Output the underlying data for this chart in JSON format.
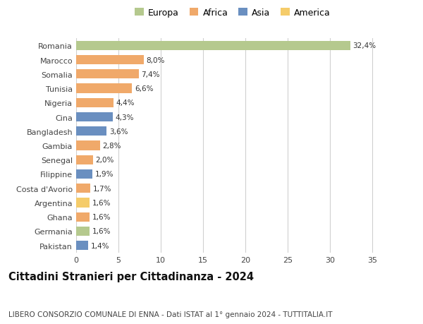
{
  "countries": [
    "Romania",
    "Marocco",
    "Somalia",
    "Tunisia",
    "Nigeria",
    "Cina",
    "Bangladesh",
    "Gambia",
    "Senegal",
    "Filippine",
    "Costa d'Avorio",
    "Argentina",
    "Ghana",
    "Germania",
    "Pakistan"
  ],
  "values": [
    32.4,
    8.0,
    7.4,
    6.6,
    4.4,
    4.3,
    3.6,
    2.8,
    2.0,
    1.9,
    1.7,
    1.6,
    1.6,
    1.6,
    1.4
  ],
  "labels": [
    "32,4%",
    "8,0%",
    "7,4%",
    "6,6%",
    "4,4%",
    "4,3%",
    "3,6%",
    "2,8%",
    "2,0%",
    "1,9%",
    "1,7%",
    "1,6%",
    "1,6%",
    "1,6%",
    "1,4%"
  ],
  "colors": [
    "#b5c98e",
    "#f0a96a",
    "#f0a96a",
    "#f0a96a",
    "#f0a96a",
    "#6a8fc0",
    "#6a8fc0",
    "#f0a96a",
    "#f0a96a",
    "#6a8fc0",
    "#f0a96a",
    "#f5cc6a",
    "#f0a96a",
    "#b5c98e",
    "#6a8fc0"
  ],
  "continent_colors": {
    "Europa": "#b5c98e",
    "Africa": "#f0a96a",
    "Asia": "#6a8fc0",
    "America": "#f5cc6a"
  },
  "title": "Cittadini Stranieri per Cittadinanza - 2024",
  "subtitle": "LIBERO CONSORZIO COMUNALE DI ENNA - Dati ISTAT al 1° gennaio 2024 - TUTTITALIA.IT",
  "xlim": [
    0,
    37
  ],
  "xticks": [
    0,
    5,
    10,
    15,
    20,
    25,
    30,
    35
  ],
  "background_color": "#ffffff",
  "grid_color": "#d0d0d0",
  "bar_height": 0.65,
  "title_fontsize": 10.5,
  "subtitle_fontsize": 7.5,
  "tick_fontsize": 8,
  "label_fontsize": 7.5,
  "legend_fontsize": 9
}
